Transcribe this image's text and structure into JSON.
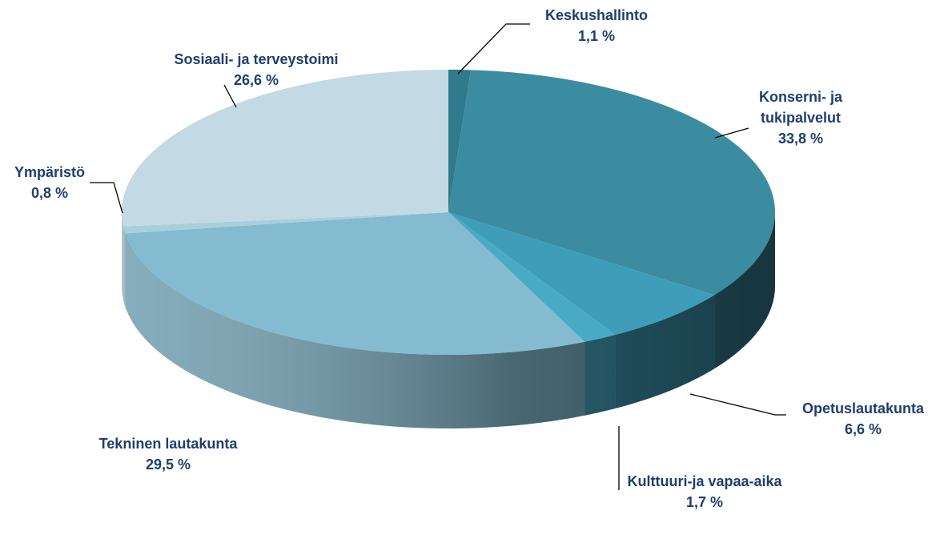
{
  "chart_data": {
    "type": "pie",
    "categories": [
      "Keskushallinto",
      "Konserni- ja tukipalvelut",
      "Opetuslautakunta",
      "Kulttuuri-ja vapaa-aika",
      "Tekninen lautakunta",
      "Ympäristö",
      "Sosiaali- ja terveystoimi"
    ],
    "values": [
      1.1,
      33.8,
      6.6,
      1.7,
      29.5,
      0.8,
      26.6
    ],
    "value_labels": [
      "1,1 %",
      "33,8 %",
      "6,6 %",
      "1,7 %",
      "29,5 %",
      "0,8 %",
      "26,6 %"
    ],
    "colors": [
      "#2f7a8c",
      "#3b8ba1",
      "#3f9db9",
      "#4aaac6",
      "#84bbd0",
      "#a9cfdc",
      "#c3d9e4"
    ]
  }
}
